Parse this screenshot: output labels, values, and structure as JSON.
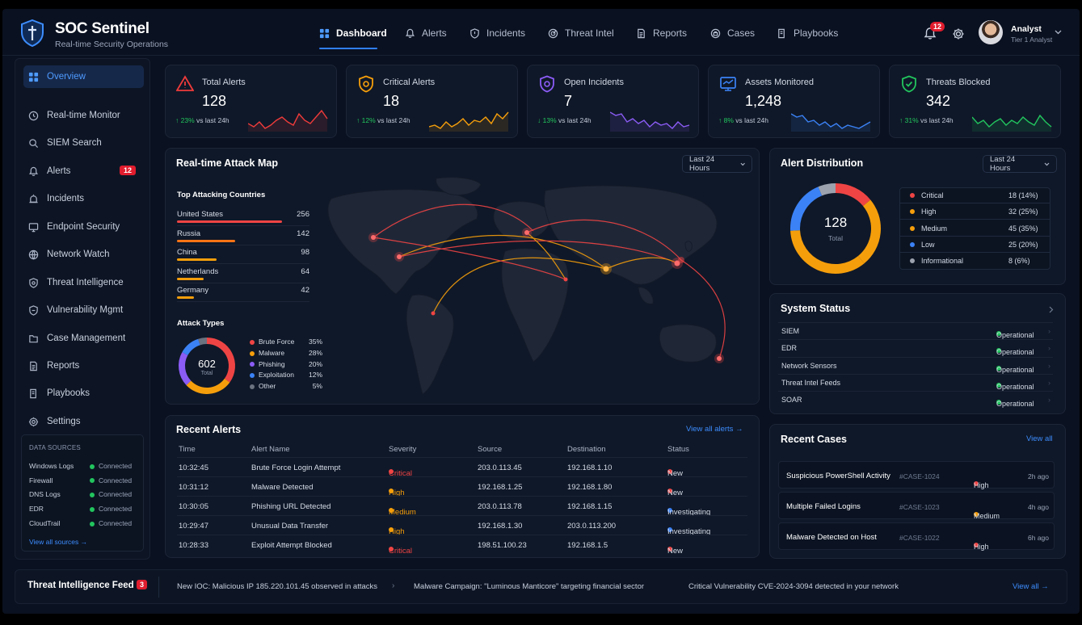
{
  "app": {
    "title": "SOC Sentinel",
    "subtitle": "Real-time Security Operations"
  },
  "nav": [
    {
      "label": "Dashboard",
      "icon": "grid-icon",
      "active": true
    },
    {
      "label": "Alerts",
      "icon": "bell-icon"
    },
    {
      "label": "Incidents",
      "icon": "shield-alert-icon"
    },
    {
      "label": "Threat Intel",
      "icon": "radar-icon"
    },
    {
      "label": "Reports",
      "icon": "report-icon"
    },
    {
      "label": "Cases",
      "icon": "cases-icon"
    },
    {
      "label": "Playbooks",
      "icon": "playbook-icon"
    }
  ],
  "header": {
    "notif_count": "12",
    "user_name": "Analyst",
    "user_role": "Tier 1 Analyst"
  },
  "sidebar": {
    "items": [
      {
        "label": "Overview",
        "icon": "grid-icon",
        "active": true
      },
      {
        "label": "Real-time Monitor",
        "icon": "monitor-icon"
      },
      {
        "label": "SIEM Search",
        "icon": "search-icon"
      },
      {
        "label": "Alerts",
        "icon": "bell-icon",
        "count": "12"
      },
      {
        "label": "Incidents",
        "icon": "siren-icon"
      },
      {
        "label": "Endpoint Security",
        "icon": "endpoint-icon"
      },
      {
        "label": "Network Watch",
        "icon": "network-icon"
      },
      {
        "label": "Threat Intelligence",
        "icon": "threat-intel-icon"
      },
      {
        "label": "Vulnerability Mgmt",
        "icon": "vulnerability-icon"
      },
      {
        "label": "Case Management",
        "icon": "case-icon"
      },
      {
        "label": "Reports",
        "icon": "report-icon"
      },
      {
        "label": "Playbooks",
        "icon": "playbook-icon"
      },
      {
        "label": "Settings",
        "icon": "gear-icon"
      }
    ],
    "data_sources": {
      "title": "DATA SOURCES",
      "rows": [
        {
          "name": "Windows Logs",
          "status": "Connected"
        },
        {
          "name": "Firewall",
          "status": "Connected"
        },
        {
          "name": "DNS Logs",
          "status": "Connected"
        },
        {
          "name": "EDR",
          "status": "Connected"
        },
        {
          "name": "CloudTrail",
          "status": "Connected"
        }
      ],
      "link": "View all sources"
    }
  },
  "kpis": [
    {
      "label": "Total Alerts",
      "value": "128",
      "change": "23%",
      "change_suffix": "vs last 24h",
      "dir": "up",
      "color": "#ef3b3b",
      "icon": "warning-icon"
    },
    {
      "label": "Critical Alerts",
      "value": "18",
      "change": "12%",
      "change_suffix": "vs last 24h",
      "dir": "up",
      "color": "#f59e0b",
      "icon": "shield-bolt-icon"
    },
    {
      "label": "Open Incidents",
      "value": "7",
      "change": "13%",
      "change_suffix": "vs last 24h",
      "dir": "down",
      "color": "#8b5cf6",
      "icon": "bug-shield-icon"
    },
    {
      "label": "Assets Monitored",
      "value": "1,248",
      "change": "8%",
      "change_suffix": "vs last 24h",
      "dir": "up",
      "color": "#3b82f6",
      "icon": "monitor-icon"
    },
    {
      "label": "Threats Blocked",
      "value": "342",
      "change": "31%",
      "change_suffix": "vs last 24h",
      "dir": "up",
      "color": "#22c55e",
      "icon": "shield-check-icon"
    }
  ],
  "attack_map": {
    "title": "Real-time Attack Map",
    "range": "Last 24 Hours",
    "countries_title": "Top Attacking Countries",
    "countries": [
      {
        "name": "United States",
        "value": "256",
        "color": "#ef4444",
        "frac": 1.0
      },
      {
        "name": "Russia",
        "value": "142",
        "color": "#f97316",
        "frac": 0.55
      },
      {
        "name": "China",
        "value": "98",
        "color": "#f59e0b",
        "frac": 0.38
      },
      {
        "name": "Netherlands",
        "value": "64",
        "color": "#f59e0b",
        "frac": 0.25
      },
      {
        "name": "Germany",
        "value": "42",
        "color": "#f59e0b",
        "frac": 0.16
      }
    ],
    "types_title": "Attack Types",
    "types_total": "602",
    "types_total_label": "Total",
    "types": [
      {
        "name": "Brute Force",
        "pct": "35%",
        "color": "#ef4444",
        "value": 35
      },
      {
        "name": "Malware",
        "pct": "28%",
        "color": "#f59e0b",
        "value": 28
      },
      {
        "name": "Phishing",
        "pct": "20%",
        "color": "#8b5cf6",
        "value": 20
      },
      {
        "name": "Exploitation",
        "pct": "12%",
        "color": "#3b82f6",
        "value": 12
      },
      {
        "name": "Other",
        "pct": "5%",
        "color": "#6b7280",
        "value": 5
      }
    ]
  },
  "alert_distribution": {
    "title": "Alert Distribution",
    "range": "Last 24 Hours",
    "total": "128",
    "total_label": "Total",
    "rows": [
      {
        "name": "Critical",
        "value": "18 (14%)",
        "color": "#ef4444",
        "n": 18
      },
      {
        "name": "High",
        "value": "32 (25%)",
        "color": "#f59e0b",
        "n": 32
      },
      {
        "name": "Medium",
        "value": "45 (35%)",
        "color": "#f59e0b",
        "n": 45
      },
      {
        "name": "Low",
        "value": "25 (20%)",
        "color": "#3b82f6",
        "n": 25
      },
      {
        "name": "Informational",
        "value": "8 (6%)",
        "color": "#9ca3af",
        "n": 8
      }
    ]
  },
  "system_status": {
    "title": "System Status",
    "rows": [
      {
        "name": "SIEM",
        "status": "Operational"
      },
      {
        "name": "EDR",
        "status": "Operational"
      },
      {
        "name": "Network Sensors",
        "status": "Operational"
      },
      {
        "name": "Threat Intel Feeds",
        "status": "Operational"
      },
      {
        "name": "SOAR",
        "status": "Operational"
      }
    ]
  },
  "recent_alerts": {
    "title": "Recent Alerts",
    "link": "View all alerts",
    "columns": [
      "Time",
      "Alert Name",
      "Severity",
      "Source",
      "Destination",
      "Status"
    ],
    "rows": [
      {
        "time": "10:32:45",
        "name": "Brute Force Login Attempt",
        "severity": "Critical",
        "sev_color": "#ef4444",
        "source": "203.0.113.45",
        "dest": "192.168.1.10",
        "status": "New",
        "status_color": "#ef4444"
      },
      {
        "time": "10:31:12",
        "name": "Malware Detected",
        "severity": "High",
        "sev_color": "#f59e0b",
        "source": "192.168.1.25",
        "dest": "192.168.1.80",
        "status": "New",
        "status_color": "#ef4444"
      },
      {
        "time": "10:30:05",
        "name": "Phishing URL Detected",
        "severity": "Medium",
        "sev_color": "#f59e0b",
        "source": "203.0.113.78",
        "dest": "192.168.1.15",
        "status": "Investigating",
        "status_color": "#3b82f6"
      },
      {
        "time": "10:29:47",
        "name": "Unusual Data Transfer",
        "severity": "High",
        "sev_color": "#f59e0b",
        "source": "192.168.1.30",
        "dest": "203.0.113.200",
        "status": "Investigating",
        "status_color": "#3b82f6"
      },
      {
        "time": "10:28:33",
        "name": "Exploit Attempt Blocked",
        "severity": "Critical",
        "sev_color": "#ef4444",
        "source": "198.51.100.23",
        "dest": "192.168.1.5",
        "status": "New",
        "status_color": "#ef4444"
      }
    ]
  },
  "recent_cases": {
    "title": "Recent Cases",
    "link": "View all",
    "rows": [
      {
        "name": "Suspicious PowerShell Activity",
        "id": "#CASE-1024",
        "priority": "High",
        "color": "#ef4444",
        "ago": "2h ago"
      },
      {
        "name": "Multiple Failed Logins",
        "id": "#CASE-1023",
        "priority": "Medium",
        "color": "#f59e0b",
        "ago": "4h ago"
      },
      {
        "name": "Malware Detected on Host",
        "id": "#CASE-1022",
        "priority": "High",
        "color": "#ef4444",
        "ago": "6h ago"
      }
    ]
  },
  "feed": {
    "title": "Threat Intelligence Feed",
    "count": "3",
    "items": [
      "New IOC: Malicious IP 185.220.101.45 observed in attacks",
      "Malware Campaign: \"Luminous Manticore\" targeting financial sector",
      "Critical Vulnerability CVE-2024-3094 detected in your network"
    ],
    "link": "View all"
  },
  "colors": {
    "accent": "#2f80ff",
    "ok": "#22c55e",
    "critical": "#ef4444",
    "warn": "#f59e0b",
    "bg": "#0a1120"
  }
}
